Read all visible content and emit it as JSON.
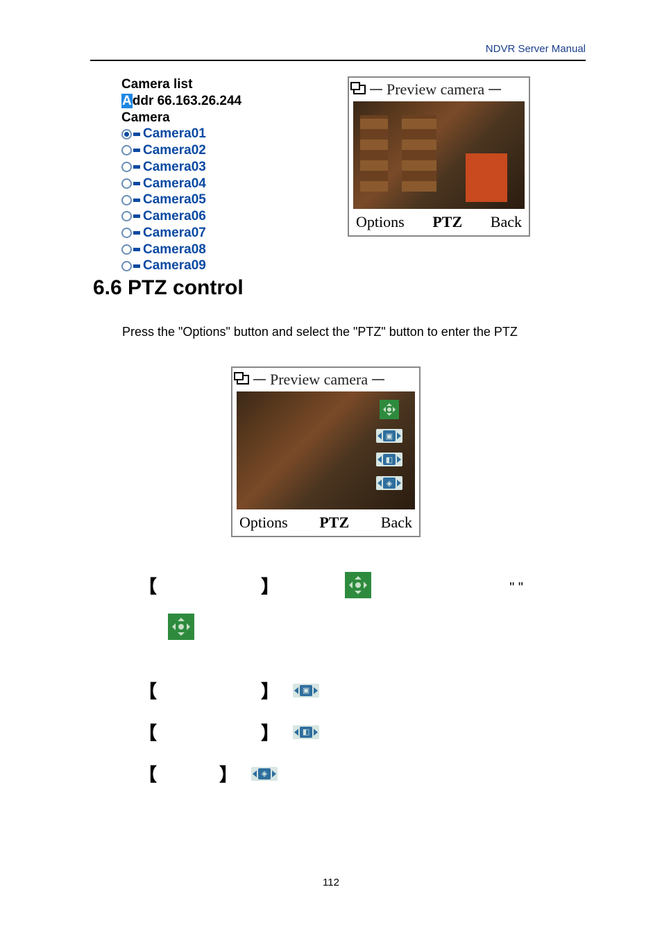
{
  "header": {
    "link_text": "NDVR Server Manual",
    "link_color": "#1a3e8c"
  },
  "camera_list": {
    "title": "Camera list",
    "addr_highlight_char": "A",
    "addr_rest": "ddr 66.163.26.244",
    "camera_label": "Camera",
    "items": [
      {
        "label": "Camera01",
        "selected": true
      },
      {
        "label": "Camera02",
        "selected": false
      },
      {
        "label": "Camera03",
        "selected": false
      },
      {
        "label": "Camera04",
        "selected": false
      },
      {
        "label": "Camera05",
        "selected": false
      },
      {
        "label": "Camera06",
        "selected": false
      },
      {
        "label": "Camera07",
        "selected": false
      },
      {
        "label": "Camera08",
        "selected": false
      },
      {
        "label": "Camera09",
        "selected": false
      }
    ],
    "item_color": "#0b4aa2"
  },
  "preview": {
    "title": "Preview camera",
    "softkeys": {
      "left": "Options",
      "middle": "PTZ",
      "right": "Back"
    }
  },
  "center_preview": {
    "title": "Preview camera",
    "softkeys": {
      "left": "Options",
      "middle": "PTZ",
      "right": "Back"
    },
    "icons": [
      "ptz-dpad",
      "zoom",
      "focus",
      "iris"
    ]
  },
  "section_heading": "6.6 PTZ control",
  "body_line_1": "Press the \"Options\" button and select the \"PTZ\" button to enter the PTZ",
  "definitions": {
    "bracket_open": "【",
    "bracket_close": "】",
    "quotes": "\"     \"",
    "row1_icon": "ptz-dpad-big",
    "row1b_icon": "ptz-dpad-big",
    "row2_icon": "zoom",
    "row3_icon": "focus",
    "row4_icon": "iris"
  },
  "page_number": "112",
  "colors": {
    "ptz_green": "#2e8b3e",
    "ctrl_bg": "#d7e6e2",
    "ctrl_fg": "#2e6e9e"
  }
}
